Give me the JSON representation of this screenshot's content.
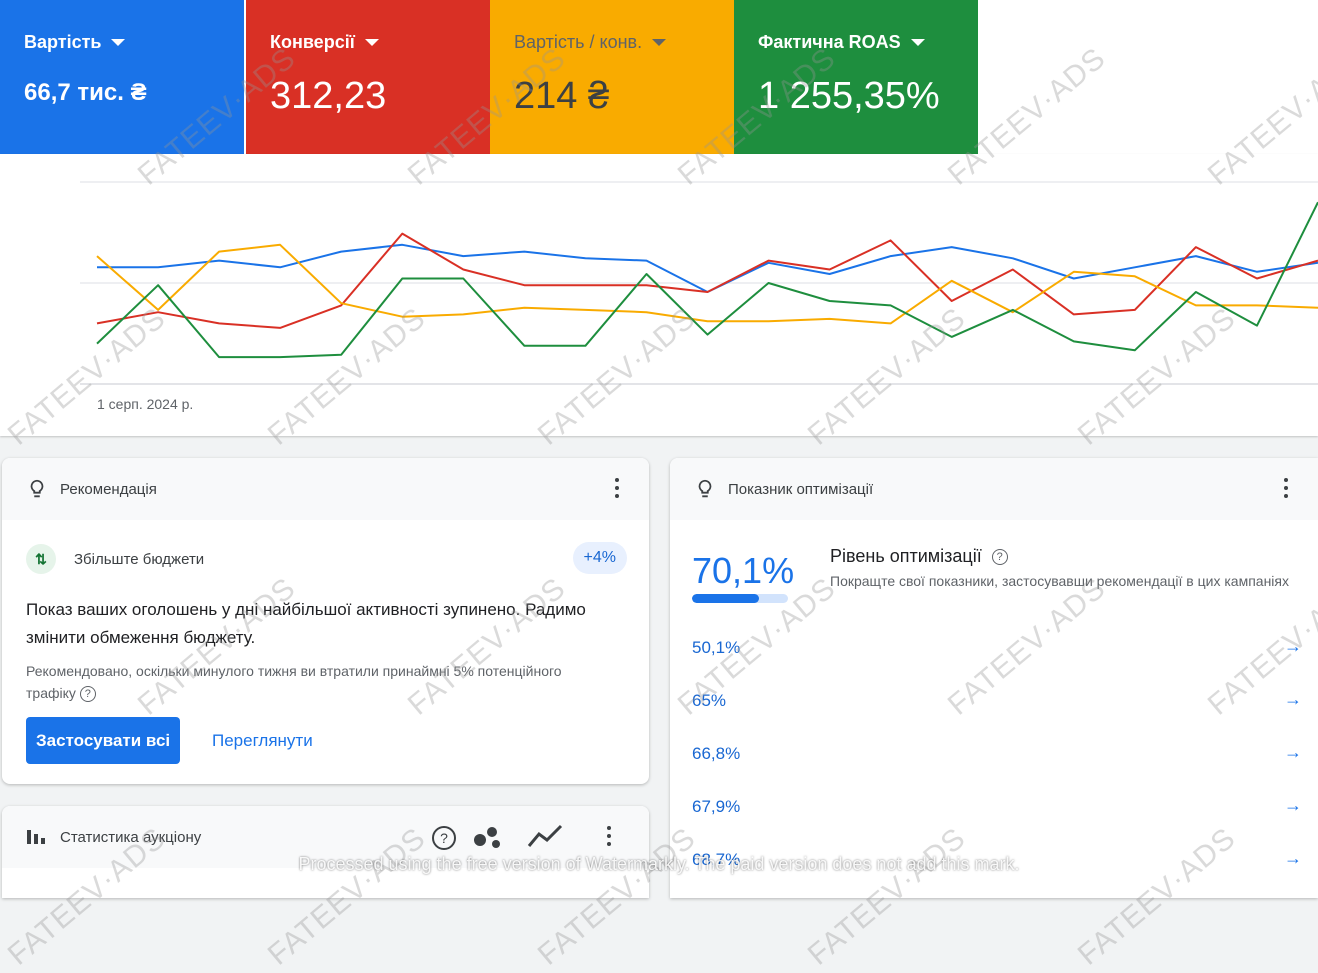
{
  "metrics": [
    {
      "label": "Вартість",
      "value": "66,7 тис. ₴",
      "color": "#1a73e8"
    },
    {
      "label": "Конверсії",
      "value": "312,23",
      "color": "#d93025"
    },
    {
      "label": "Вартість / конв.",
      "value": "214 ₴",
      "color": "#f9ab00"
    },
    {
      "label": "Фактична ROAS",
      "value": "1 255,35%",
      "color": "#1e8e3e"
    }
  ],
  "chart_data": {
    "type": "line",
    "x_start_label": "1 серп. 2024 р.",
    "series": [
      {
        "color": "#1a73e8",
        "values": [
          52,
          52,
          55,
          52,
          59,
          62,
          57,
          59,
          56,
          55,
          41,
          54,
          49,
          57,
          61,
          56,
          47,
          52,
          57,
          50,
          54
        ]
      },
      {
        "color": "#d93025",
        "values": [
          27,
          32,
          27,
          25,
          35,
          67,
          51,
          44,
          44,
          44,
          41,
          55,
          51,
          64,
          37,
          51,
          31,
          33,
          61,
          47,
          55
        ]
      },
      {
        "color": "#f9ab00",
        "values": [
          57,
          33,
          59,
          62,
          36,
          30,
          31,
          34,
          33,
          32,
          28,
          28,
          29,
          27,
          46,
          32,
          50,
          48,
          35,
          35,
          34
        ]
      },
      {
        "color": "#1e8e3e",
        "values": [
          18,
          44,
          12,
          12,
          13,
          47,
          47,
          17,
          17,
          49,
          22,
          45,
          37,
          35,
          21,
          33,
          19,
          15,
          41,
          26,
          81
        ]
      }
    ]
  },
  "recommendation": {
    "title": "Рекомендація",
    "sub_title": "Збільште бюджети",
    "badge": "+4%",
    "main_text": "Показ ваших оголошень у дні найбільшої активності зупинено. Радимо змінити обмеження бюджету.",
    "note": "Рекомендовано, оскільки минулого тижня ви втратили принаймні 5% потенційного трафіку",
    "apply_label": "Застосувати всі",
    "view_label": "Переглянути"
  },
  "optimization": {
    "title": "Показник оптимізації",
    "value": "70,1%",
    "progress": 0.701,
    "level_title": "Рівень оптимізації",
    "level_desc": "Покращте свої показники, застосувавши рекомендації в цих кампаніях",
    "rows": [
      "50,1%",
      "65%",
      "66,8%",
      "67,9%",
      "68,7%"
    ]
  },
  "auction": {
    "title": "Статистика аукціону"
  },
  "watermark": {
    "text": "FATEEV·ADS",
    "note": "Processed using the free version of Watermarkly. The paid version does not add this mark."
  }
}
